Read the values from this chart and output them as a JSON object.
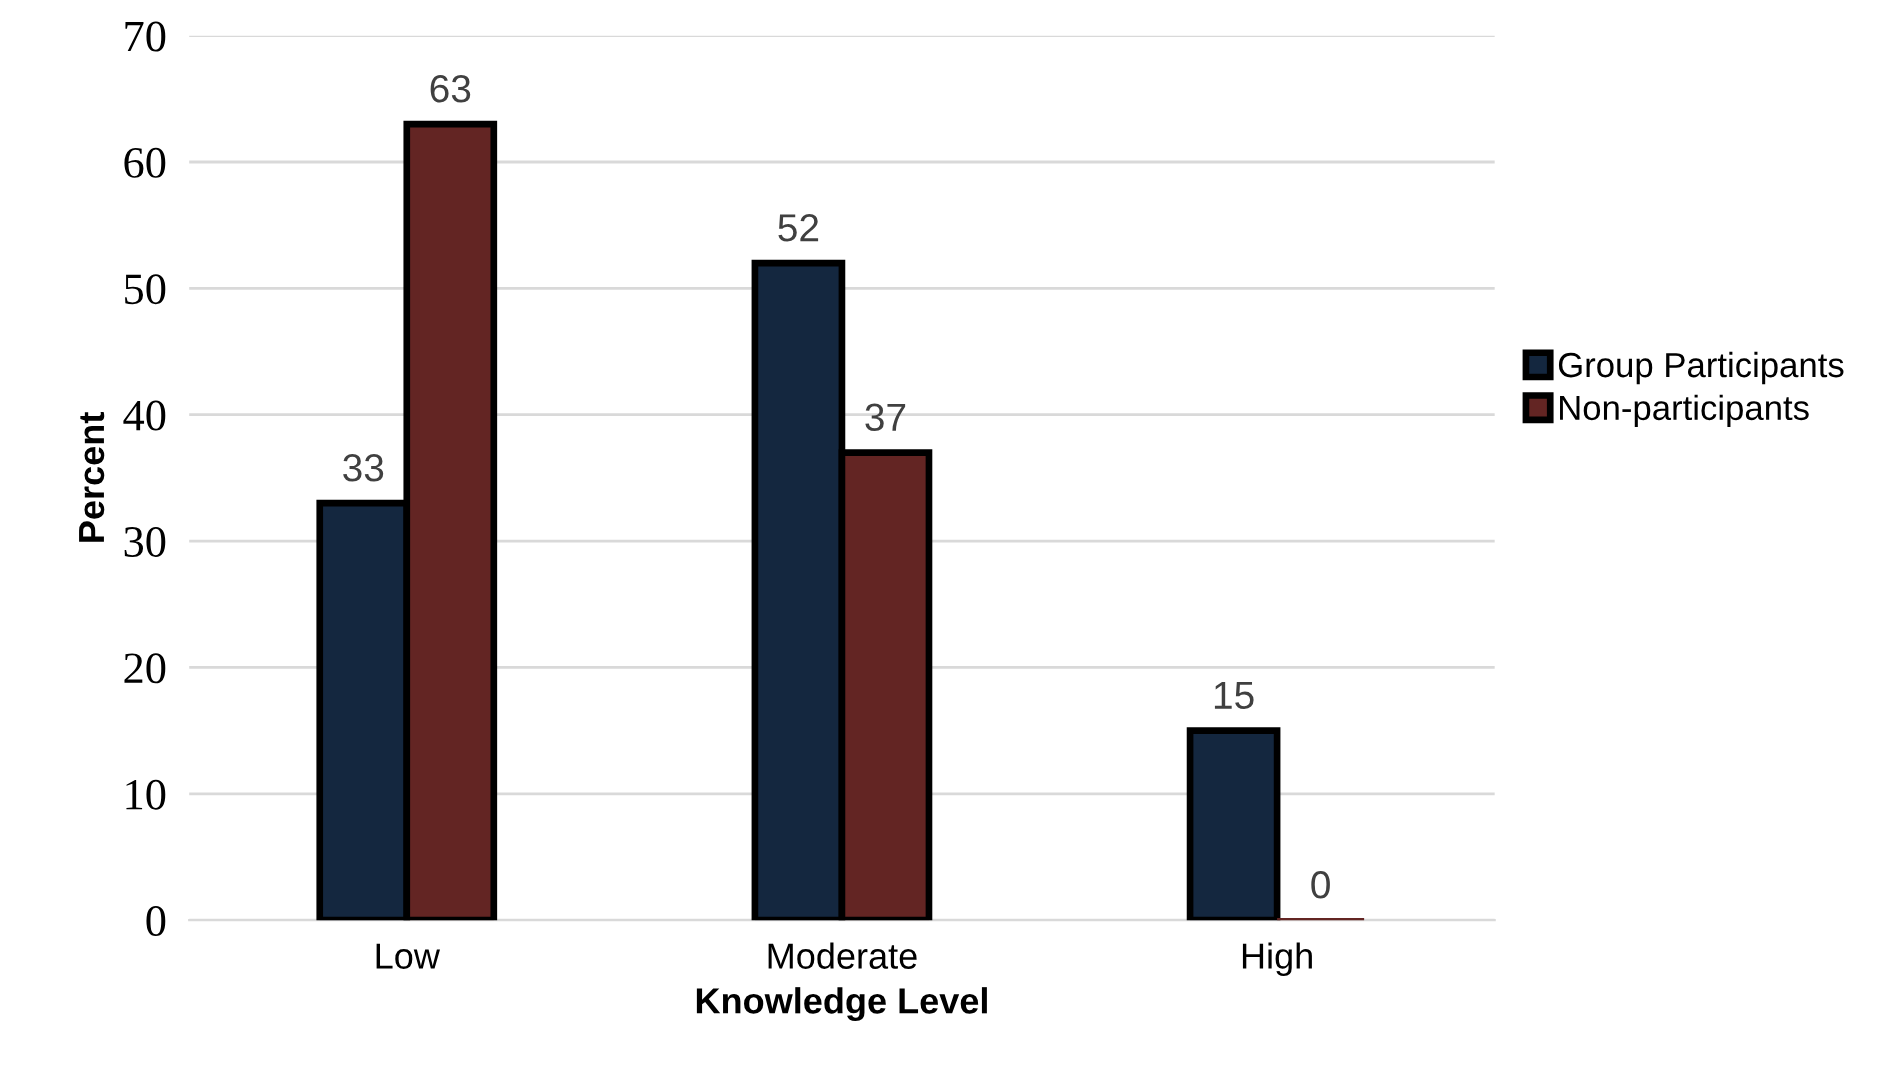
{
  "chart_data": {
    "type": "bar",
    "xlabel": "Knowledge Level",
    "ylabel": "Percent",
    "categories": [
      "Low",
      "Moderate",
      "High"
    ],
    "series": [
      {
        "name": "Group Participants",
        "color": "#14273f",
        "values": [
          33,
          52,
          15
        ]
      },
      {
        "name": "Non-participants",
        "color": "#632523",
        "values": [
          63,
          37,
          0
        ]
      }
    ],
    "ylim": [
      0,
      70
    ],
    "yticks": [
      0,
      10,
      20,
      30,
      40,
      50,
      60,
      70
    ],
    "grid": "y",
    "legend": "right",
    "data_labels": true
  }
}
